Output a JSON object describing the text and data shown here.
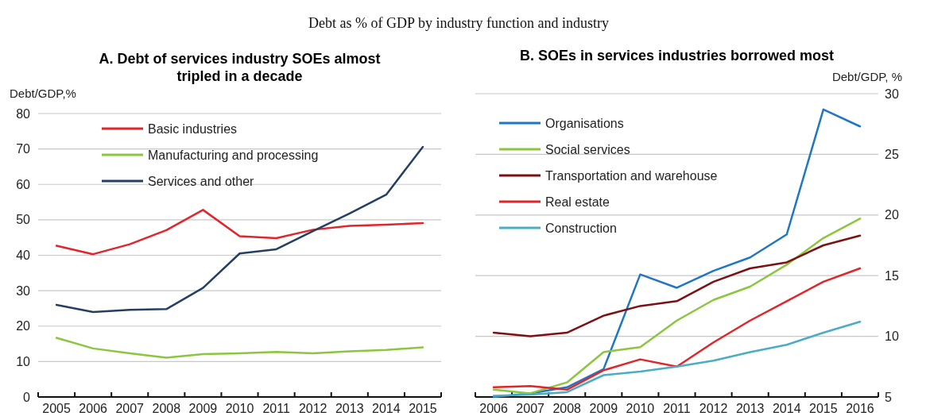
{
  "chart_data": [
    {
      "type": "line",
      "title": "A. Debt of services industry SOEs almost tripled in a decade",
      "subtitle": "Debt as % of GDP by industry function and industry",
      "ylabel": "Debt/GDP,%",
      "categories": [
        "2005",
        "2006",
        "2007",
        "2008",
        "2009",
        "2010",
        "2011",
        "2012",
        "2013",
        "2014",
        "2015"
      ],
      "ylim": [
        0,
        80
      ],
      "yticks": [
        0,
        10,
        20,
        30,
        40,
        50,
        60,
        70,
        80
      ],
      "grid": "y",
      "legend": "top left",
      "series": [
        {
          "name": "Basic industries",
          "color": "#e0262b",
          "values": [
            42.7,
            40.3,
            43.1,
            47.1,
            52.8,
            45.4,
            44.8,
            47.2,
            48.3,
            48.6,
            49.1
          ]
        },
        {
          "name": "Manufacturing and processing",
          "color": "#8cc63f",
          "values": [
            16.7,
            13.7,
            12.3,
            11.1,
            12.1,
            12.3,
            12.7,
            12.3,
            12.9,
            13.3,
            14.0
          ]
        },
        {
          "name": "Services and other",
          "color": "#243f63",
          "values": [
            26.0,
            24.0,
            24.6,
            24.8,
            30.8,
            40.5,
            41.7,
            46.8,
            51.8,
            57.1,
            70.6
          ]
        }
      ]
    },
    {
      "type": "line",
      "title": "B. SOEs in services industries borrowed most",
      "y2label": "Debt/GDP, %",
      "categories": [
        "2006",
        "2007",
        "2008",
        "2009",
        "2010",
        "2011",
        "2012",
        "2013",
        "2014",
        "2015",
        "2016"
      ],
      "y2lim": [
        5,
        30
      ],
      "y2ticks": [
        5,
        10,
        15,
        20,
        25,
        30
      ],
      "grid": "y",
      "legend": "top left",
      "series": [
        {
          "name": "Organisations",
          "color": "#1f77c4",
          "axis": "y2",
          "values": [
            5.0,
            5.3,
            5.8,
            7.3,
            15.1,
            14.0,
            15.4,
            16.5,
            18.4,
            28.7,
            27.3
          ]
        },
        {
          "name": "Social services",
          "color": "#8cc63f",
          "axis": "y2",
          "values": [
            5.6,
            5.3,
            6.2,
            8.7,
            9.1,
            11.3,
            13.0,
            14.1,
            15.9,
            18.1,
            19.7
          ]
        },
        {
          "name": "Transportation and warehouse",
          "color": "#7b1113",
          "axis": "y2",
          "values": [
            10.3,
            10.0,
            10.3,
            11.7,
            12.5,
            12.9,
            14.5,
            15.6,
            16.1,
            17.5,
            18.3
          ]
        },
        {
          "name": "Real estate",
          "color": "#e0262b",
          "axis": "y2",
          "values": [
            5.8,
            5.9,
            5.6,
            7.2,
            8.1,
            7.5,
            9.5,
            11.3,
            12.9,
            14.5,
            15.6
          ]
        },
        {
          "name": "Construction",
          "color": "#4bacc6",
          "axis": "y2",
          "values": [
            5.1,
            5.2,
            5.4,
            6.8,
            7.1,
            7.5,
            8.0,
            8.7,
            9.3,
            10.3,
            11.2
          ]
        }
      ]
    }
  ]
}
